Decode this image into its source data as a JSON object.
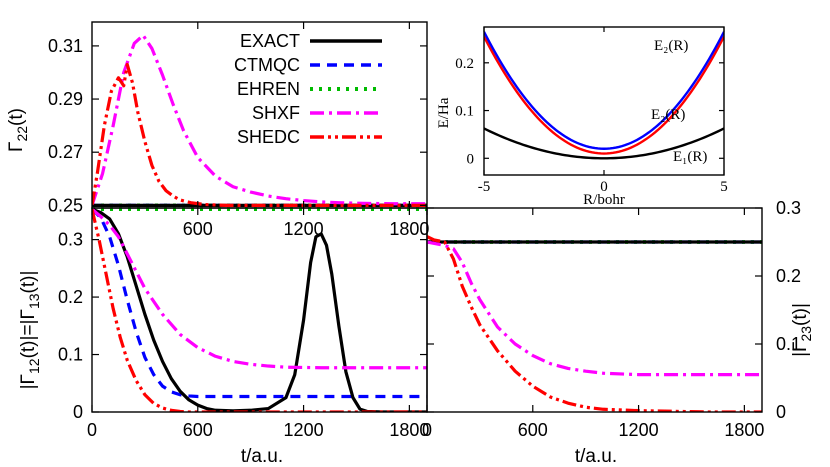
{
  "chart_data": [
    {
      "id": "top",
      "type": "line",
      "ylabel": "Γ22(t)",
      "xlabel": "",
      "xlim": [
        0,
        1900
      ],
      "ylim": [
        0.249,
        0.319
      ],
      "xticks": [
        "600",
        "1200",
        "1800"
      ],
      "xtick_values": [
        600,
        1200,
        1800
      ],
      "yticks": [
        "0.25",
        "0.27",
        "0.29",
        "0.31"
      ],
      "ytick_values": [
        0.25,
        0.27,
        0.29,
        0.31
      ],
      "legend": [
        {
          "name": "EXACT",
          "color": "#000000",
          "dash": "solid"
        },
        {
          "name": "CTMQC",
          "color": "#0000ff",
          "dash": "dashed"
        },
        {
          "name": "EHREN",
          "color": "#00bb00",
          "dash": "dotted"
        },
        {
          "name": "SHXF",
          "color": "#ff00ff",
          "dash": "dashdot"
        },
        {
          "name": "SHEDC",
          "color": "#ff0000",
          "dash": "dashdotdot"
        }
      ],
      "series": [
        {
          "name": "EXACT",
          "x": [
            0,
            1900
          ],
          "y": [
            0.25,
            0.25
          ]
        },
        {
          "name": "CTMQC",
          "x": [
            0,
            1900
          ],
          "y": [
            0.25,
            0.25
          ]
        },
        {
          "name": "EHREN",
          "x": [
            0,
            1900
          ],
          "y": [
            0.25,
            0.25
          ]
        },
        {
          "name": "SHXF",
          "x": [
            0,
            60,
            120,
            180,
            240,
            290,
            340,
            400,
            460,
            520,
            600,
            700,
            800,
            900,
            1000,
            1100,
            1200,
            1300,
            1400,
            1500,
            1600,
            1700,
            1800,
            1900
          ],
          "y": [
            0.25,
            0.262,
            0.28,
            0.3,
            0.311,
            0.314,
            0.309,
            0.299,
            0.288,
            0.278,
            0.268,
            0.261,
            0.257,
            0.255,
            0.2535,
            0.2525,
            0.2518,
            0.2513,
            0.251,
            0.2508,
            0.2507,
            0.2506,
            0.2506,
            0.2506
          ]
        },
        {
          "name": "SHEDC",
          "x": [
            0,
            30,
            70,
            110,
            150,
            180,
            200,
            230,
            260,
            300,
            340,
            380,
            420,
            460,
            500,
            560,
            640,
            760,
            900,
            1100,
            1300,
            1500,
            1700,
            1900
          ],
          "y": [
            0.25,
            0.262,
            0.28,
            0.293,
            0.298,
            0.295,
            0.303,
            0.296,
            0.285,
            0.274,
            0.265,
            0.259,
            0.2555,
            0.2535,
            0.252,
            0.251,
            0.2503,
            0.25,
            0.25,
            0.25,
            0.25,
            0.25,
            0.25,
            0.25
          ]
        }
      ]
    },
    {
      "id": "inset",
      "type": "line",
      "xlabel": "R/bohr",
      "ylabel": "E/Ha",
      "xlim": [
        -5,
        5
      ],
      "ylim": [
        -0.035,
        0.275
      ],
      "xticks": [
        "-5",
        "0",
        "5"
      ],
      "xtick_values": [
        -5,
        0,
        5
      ],
      "yticks": [
        "0",
        "0.1",
        "0.2"
      ],
      "ytick_values": [
        0,
        0.1,
        0.2
      ],
      "annotations": [
        {
          "text": "E₂(R)",
          "color": "#0000ff"
        },
        {
          "text": "E₂(R)",
          "color": "#ff0000"
        },
        {
          "text": "E₁(R)",
          "color": "#000000"
        }
      ],
      "series": [
        {
          "name": "E1",
          "color": "#000000",
          "curvature": 0.0025,
          "offset": 0.0
        },
        {
          "name": "E2 (red)",
          "color": "#ff0000",
          "curvature": 0.0098,
          "offset": 0.01
        },
        {
          "name": "E2 (blue)",
          "color": "#0000ff",
          "curvature": 0.0098,
          "offset": 0.02
        }
      ]
    },
    {
      "id": "bottom-left",
      "type": "line",
      "xlabel": "t/a.u.",
      "ylabel": "|Γ12(t)|=|Γ13(t)|",
      "xlim": [
        0,
        1900
      ],
      "ylim": [
        0,
        0.355
      ],
      "xticks": [
        "0",
        "600",
        "1200",
        "1800"
      ],
      "xtick_values": [
        0,
        600,
        1200,
        1800
      ],
      "yticks": [
        "0",
        "0.1",
        "0.2",
        "0.3"
      ],
      "ytick_values": [
        0,
        0.1,
        0.2,
        0.3
      ],
      "series": [
        {
          "name": "EXACT",
          "x": [
            0,
            50,
            100,
            150,
            200,
            250,
            300,
            350,
            400,
            450,
            500,
            550,
            600,
            650,
            700,
            800,
            900,
            1000,
            1100,
            1150,
            1200,
            1240,
            1270,
            1300,
            1330,
            1360,
            1400,
            1440,
            1480,
            1520,
            1560,
            1650,
            1900
          ],
          "y": [
            0.353,
            0.347,
            0.336,
            0.31,
            0.27,
            0.22,
            0.17,
            0.125,
            0.088,
            0.058,
            0.036,
            0.021,
            0.012,
            0.006,
            0.003,
            0.002,
            0.003,
            0.006,
            0.025,
            0.065,
            0.16,
            0.26,
            0.305,
            0.31,
            0.29,
            0.24,
            0.15,
            0.07,
            0.025,
            0.005,
            0.001,
            0.0,
            0.0
          ]
        },
        {
          "name": "CTMQC",
          "x": [
            0,
            50,
            100,
            150,
            200,
            250,
            300,
            350,
            400,
            450,
            500,
            550,
            600,
            1900
          ],
          "y": [
            0.353,
            0.338,
            0.305,
            0.255,
            0.195,
            0.14,
            0.095,
            0.065,
            0.045,
            0.035,
            0.03,
            0.028,
            0.027,
            0.027
          ]
        },
        {
          "name": "EHREN",
          "x": [
            0,
            1900
          ],
          "y": [
            0.353,
            0.353
          ]
        },
        {
          "name": "SHXF",
          "x": [
            0,
            50,
            100,
            150,
            200,
            250,
            300,
            400,
            500,
            600,
            700,
            800,
            900,
            1000,
            1100,
            1300,
            1500,
            1900
          ],
          "y": [
            0.353,
            0.34,
            0.325,
            0.305,
            0.275,
            0.245,
            0.215,
            0.17,
            0.135,
            0.112,
            0.097,
            0.088,
            0.083,
            0.08,
            0.078,
            0.077,
            0.077,
            0.077
          ]
        },
        {
          "name": "SHEDC",
          "x": [
            0,
            40,
            80,
            120,
            160,
            200,
            250,
            300,
            350,
            400,
            450,
            500,
            550,
            600,
            700,
            800,
            900,
            1000,
            1200,
            1400,
            1600,
            1900
          ],
          "y": [
            0.353,
            0.3,
            0.24,
            0.18,
            0.13,
            0.09,
            0.055,
            0.03,
            0.015,
            0.007,
            0.003,
            0.001,
            0.0,
            0.0,
            0.0,
            0.0,
            0.0,
            0.0,
            0.0,
            0.0,
            0.0,
            0.0
          ]
        }
      ]
    },
    {
      "id": "bottom-right",
      "type": "line",
      "xlabel": "t/a.u.",
      "ylabel": "|Γ23(t)|",
      "xlim": [
        0,
        1900
      ],
      "ylim": [
        0,
        0.3
      ],
      "xticks": [
        "0",
        "600",
        "1200",
        "1800"
      ],
      "xtick_values": [
        0,
        600,
        1200,
        1800
      ],
      "yticks": [
        "0",
        "0.1",
        "0.2",
        "0.3"
      ],
      "ytick_values": [
        0,
        0.1,
        0.2,
        0.3
      ],
      "series": [
        {
          "name": "EXACT",
          "x": [
            0,
            1900
          ],
          "y": [
            0.25,
            0.25
          ]
        },
        {
          "name": "CTMQC",
          "x": [
            0,
            1900
          ],
          "y": [
            0.25,
            0.25
          ]
        },
        {
          "name": "EHREN",
          "x": [
            0,
            1900
          ],
          "y": [
            0.25,
            0.25
          ]
        },
        {
          "name": "SHXF",
          "x": [
            0,
            100,
            150,
            200,
            250,
            300,
            350,
            400,
            500,
            600,
            700,
            800,
            900,
            1000,
            1200,
            1400,
            1900
          ],
          "y": [
            0.25,
            0.245,
            0.24,
            0.22,
            0.19,
            0.165,
            0.145,
            0.125,
            0.1,
            0.083,
            0.071,
            0.064,
            0.06,
            0.057,
            0.055,
            0.055,
            0.055
          ]
        },
        {
          "name": "SHEDC",
          "x": [
            0,
            40,
            100,
            150,
            200,
            250,
            300,
            400,
            500,
            600,
            700,
            800,
            900,
            1000,
            1200,
            1400,
            1600,
            1900
          ],
          "y": [
            0.258,
            0.253,
            0.25,
            0.225,
            0.185,
            0.155,
            0.128,
            0.09,
            0.06,
            0.038,
            0.022,
            0.013,
            0.007,
            0.004,
            0.002,
            0.001,
            0.0,
            0.0
          ]
        }
      ]
    }
  ]
}
